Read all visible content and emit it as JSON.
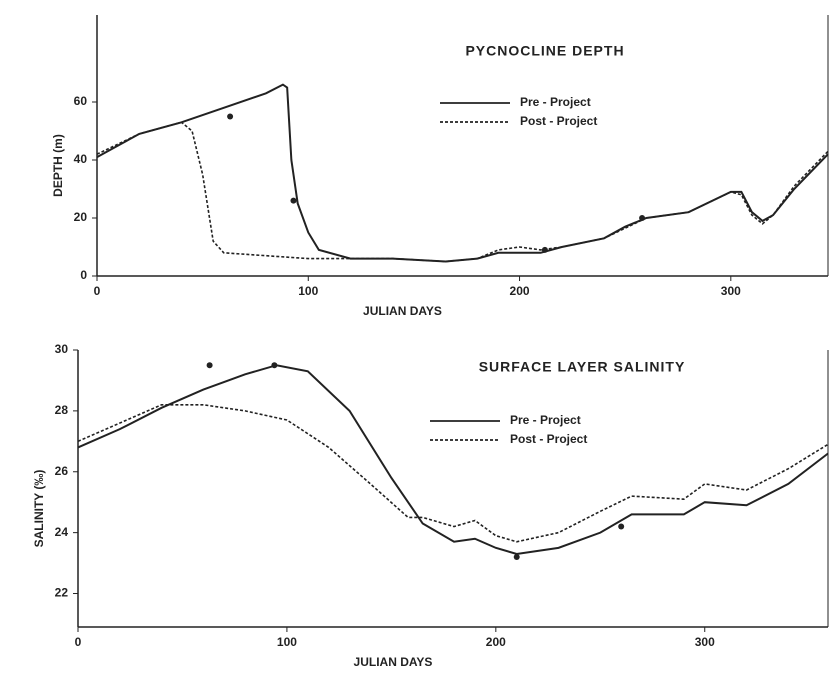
{
  "chart_data": [
    {
      "type": "line",
      "title": "PYCNOCLINE DEPTH",
      "x_label": "JULIAN DAYS",
      "y_label": "DEPTH (m)",
      "xlim": [
        0,
        346
      ],
      "ylim": [
        0,
        90
      ],
      "xticks": [
        0,
        100,
        200,
        300
      ],
      "yticks": [
        0,
        20,
        40,
        60
      ],
      "series": [
        {
          "name": "Pre - Project",
          "color": "#222222",
          "dashed": false,
          "x": [
            0,
            10,
            20,
            40,
            60,
            80,
            88,
            90,
            92,
            95,
            100,
            105,
            120,
            140,
            165,
            180,
            190,
            200,
            210,
            220,
            240,
            250,
            260,
            280,
            300,
            305,
            310,
            315,
            320,
            330,
            346
          ],
          "values": [
            41,
            45,
            49,
            53,
            58,
            63,
            66,
            65,
            40,
            25,
            15,
            9,
            6,
            6,
            5,
            6,
            8,
            8,
            8,
            10,
            13,
            17,
            20,
            22,
            29,
            29,
            22,
            19,
            21,
            30,
            42
          ]
        },
        {
          "name": "Post - Project",
          "color": "#222222",
          "dashed": true,
          "x": [
            0,
            20,
            40,
            45,
            50,
            55,
            60,
            80,
            100,
            120,
            140,
            165,
            180,
            190,
            200,
            210,
            220,
            240,
            260,
            280,
            300,
            305,
            310,
            315,
            320,
            330,
            346
          ],
          "values": [
            42,
            49,
            53,
            50,
            35,
            12,
            8,
            7,
            6,
            6,
            6,
            5,
            6,
            9,
            10,
            9,
            10,
            13,
            20,
            22,
            29,
            28,
            21,
            18,
            21,
            31,
            43
          ]
        }
      ],
      "markers": {
        "x": [
          63,
          93,
          212,
          258
        ],
        "values": [
          55,
          26,
          9,
          20
        ]
      }
    },
    {
      "type": "line",
      "title": "SURFACE LAYER SALINITY",
      "x_label": "JULIAN DAYS",
      "y_label": "SALINITY (‰)",
      "xlim": [
        0,
        359
      ],
      "ylim": [
        20.9,
        30
      ],
      "xticks": [
        0,
        100,
        200,
        300
      ],
      "yticks": [
        22,
        24,
        26,
        28,
        30
      ],
      "series": [
        {
          "name": "Pre - Project",
          "color": "#222222",
          "dashed": false,
          "x": [
            0,
            20,
            40,
            60,
            80,
            95,
            110,
            130,
            150,
            165,
            180,
            190,
            200,
            210,
            230,
            250,
            265,
            290,
            300,
            320,
            340,
            359
          ],
          "values": [
            26.8,
            27.4,
            28.1,
            28.7,
            29.2,
            29.5,
            29.3,
            28.0,
            25.8,
            24.3,
            23.7,
            23.8,
            23.5,
            23.3,
            23.5,
            24.0,
            24.6,
            24.6,
            25.0,
            24.9,
            25.6,
            26.6
          ]
        },
        {
          "name": "Post - Project",
          "color": "#222222",
          "dashed": true,
          "x": [
            0,
            20,
            40,
            60,
            80,
            100,
            120,
            140,
            158,
            165,
            180,
            190,
            200,
            210,
            230,
            250,
            265,
            290,
            300,
            320,
            340,
            359
          ],
          "values": [
            27.0,
            27.6,
            28.2,
            28.2,
            28.0,
            27.7,
            26.8,
            25.6,
            24.5,
            24.5,
            24.2,
            24.4,
            23.9,
            23.7,
            24.0,
            24.7,
            25.2,
            25.1,
            25.6,
            25.4,
            26.1,
            26.9
          ]
        }
      ],
      "markers": {
        "x": [
          63,
          94,
          210,
          260
        ],
        "values": [
          29.5,
          29.5,
          23.2,
          24.2
        ]
      }
    }
  ]
}
